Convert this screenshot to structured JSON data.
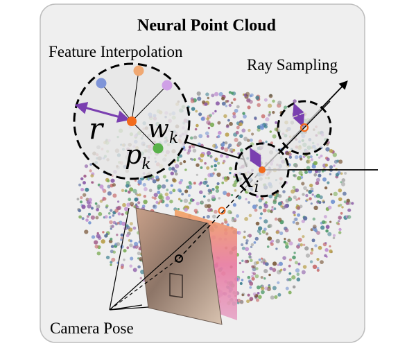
{
  "title": "Neural Point Cloud",
  "labels": {
    "feature_interpolation": "Feature Interpolation",
    "ray_sampling": "Ray Sampling",
    "camera_pose": "Camera Pose"
  },
  "symbols": {
    "radius": "r",
    "weight_base": "w",
    "weight_sub": "k",
    "point_base": "p",
    "point_sub": "k",
    "sample_base": "x",
    "sample_sub": "i"
  },
  "colors": {
    "panel_bg": "#efefef",
    "panel_border": "#bdbdbd",
    "radius_arrow": "#7a3fb0",
    "sample_point": "#f26b1d",
    "neighbor_blue": "#7f95d8",
    "neighbor_orange": "#f0a872",
    "neighbor_violet": "#cfa0e6",
    "neighbor_green": "#59b14a"
  }
}
